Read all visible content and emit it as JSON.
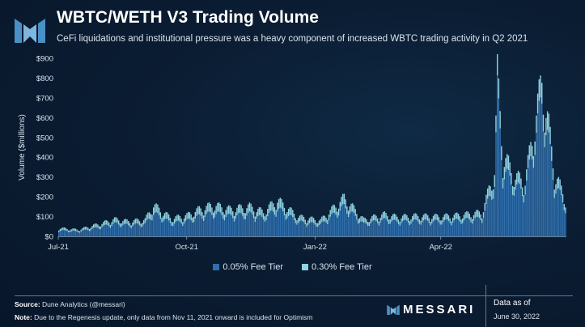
{
  "header": {
    "title": "WBTC/WETH V3 Trading Volume",
    "subtitle": "CeFi liquidations and institutional pressure was a heavy component of increased WBTC trading activity in Q2 2021"
  },
  "colors": {
    "series_dark": "#2f6fad",
    "series_light": "#8fd3e3",
    "axis_text": "#d9e3ee",
    "accent": "#ffffff"
  },
  "footer": {
    "source_label": "Source:",
    "source_text": "Dune Analytics (@messari)",
    "note_label": "Note:",
    "note_text": "Due to the Regenesis update, only data from Nov 11, 2021 onward is included for Optimism",
    "brand": "MESSARI",
    "asof_label": "Data as of",
    "asof_date": "June 30, 2022"
  },
  "chart_data": {
    "type": "bar",
    "stacked": true,
    "ylabel": "Volume ($millions)",
    "xlabel": "",
    "ylim": [
      0,
      900
    ],
    "yticks": [
      0,
      100,
      200,
      300,
      400,
      500,
      600,
      700,
      800,
      900
    ],
    "ytick_labels": [
      "$0",
      "$100",
      "$200",
      "$300",
      "$400",
      "$500",
      "$600",
      "$700",
      "$800",
      "$900"
    ],
    "x_start": "2021-07-01",
    "x_end": "2022-06-30",
    "xticks": [
      {
        "date": "2021-07-01",
        "label": "Jul-21"
      },
      {
        "date": "2021-10-01",
        "label": "Oct-21"
      },
      {
        "date": "2022-01-01",
        "label": "Jan-22"
      },
      {
        "date": "2022-04-01",
        "label": "Apr-22"
      }
    ],
    "grid": false,
    "legend_position": "bottom",
    "series": [
      {
        "name": "0.05% Fee Tier",
        "color": "#2f6fad",
        "points": [
          [
            "2021-07-01",
            28
          ],
          [
            "2021-07-15",
            22
          ],
          [
            "2021-08-01",
            45
          ],
          [
            "2021-08-10",
            60
          ],
          [
            "2021-08-20",
            52
          ],
          [
            "2021-09-01",
            58
          ],
          [
            "2021-09-07",
            110
          ],
          [
            "2021-09-20",
            62
          ],
          [
            "2021-10-01",
            72
          ],
          [
            "2021-10-10",
            95
          ],
          [
            "2021-10-20",
            110
          ],
          [
            "2021-11-01",
            95
          ],
          [
            "2021-11-15",
            105
          ],
          [
            "2021-11-25",
            85
          ],
          [
            "2021-12-05",
            130
          ],
          [
            "2021-12-20",
            68
          ],
          [
            "2022-01-05",
            55
          ],
          [
            "2022-01-22",
            140
          ],
          [
            "2022-02-05",
            58
          ],
          [
            "2022-02-20",
            78
          ],
          [
            "2022-03-01",
            68
          ],
          [
            "2022-03-15",
            72
          ],
          [
            "2022-04-01",
            70
          ],
          [
            "2022-04-15",
            75
          ],
          [
            "2022-05-01",
            85
          ],
          [
            "2022-05-10",
            250
          ],
          [
            "2022-05-12",
            680
          ],
          [
            "2022-05-16",
            320
          ],
          [
            "2022-05-25",
            230
          ],
          [
            "2022-06-01",
            220
          ],
          [
            "2022-06-13",
            640
          ],
          [
            "2022-06-18",
            440
          ],
          [
            "2022-06-22",
            250
          ],
          [
            "2022-06-30",
            140
          ]
        ]
      },
      {
        "name": "0.30% Fee Tier",
        "color": "#8fd3e3",
        "points": [
          [
            "2021-07-01",
            12
          ],
          [
            "2021-07-15",
            10
          ],
          [
            "2021-08-01",
            18
          ],
          [
            "2021-08-10",
            22
          ],
          [
            "2021-08-20",
            20
          ],
          [
            "2021-09-01",
            22
          ],
          [
            "2021-09-07",
            40
          ],
          [
            "2021-09-20",
            24
          ],
          [
            "2021-10-01",
            28
          ],
          [
            "2021-10-10",
            35
          ],
          [
            "2021-10-20",
            40
          ],
          [
            "2021-11-01",
            35
          ],
          [
            "2021-11-15",
            38
          ],
          [
            "2021-11-25",
            32
          ],
          [
            "2021-12-05",
            45
          ],
          [
            "2021-12-20",
            26
          ],
          [
            "2022-01-05",
            22
          ],
          [
            "2022-01-22",
            45
          ],
          [
            "2022-02-05",
            22
          ],
          [
            "2022-02-20",
            28
          ],
          [
            "2022-03-01",
            25
          ],
          [
            "2022-03-15",
            26
          ],
          [
            "2022-04-01",
            25
          ],
          [
            "2022-04-15",
            27
          ],
          [
            "2022-05-01",
            30
          ],
          [
            "2022-05-10",
            60
          ],
          [
            "2022-05-12",
            90
          ],
          [
            "2022-05-16",
            70
          ],
          [
            "2022-05-25",
            50
          ],
          [
            "2022-06-01",
            48
          ],
          [
            "2022-06-13",
            100
          ],
          [
            "2022-06-18",
            80
          ],
          [
            "2022-06-22",
            55
          ],
          [
            "2022-06-30",
            35
          ]
        ]
      }
    ]
  }
}
